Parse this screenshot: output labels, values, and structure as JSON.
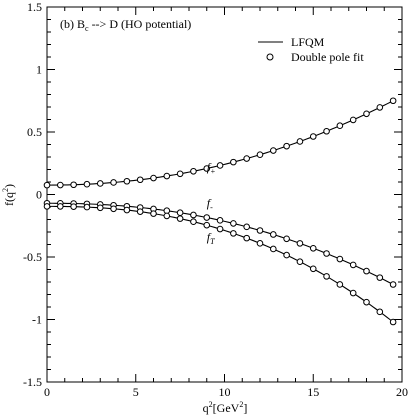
{
  "chart_data": {
    "type": "line",
    "title": "(b) B",
    "title_sub": "c",
    "title_rest": " --> D (HO potential)",
    "xlabel": {
      "base": "q",
      "sup": "2",
      "rest": "[GeV",
      "sup2": "2",
      "end": "]"
    },
    "ylabel": {
      "base": "f(q",
      "sup": "2",
      "end": ")"
    },
    "xlim": [
      0,
      20
    ],
    "ylim": [
      -1.5,
      1.5
    ],
    "xticks": [
      0,
      5,
      10,
      15,
      20
    ],
    "yticks": [
      -1.5,
      -1,
      -0.5,
      0,
      0.5,
      1,
      1.5
    ],
    "xtick_labels": [
      "0",
      "5",
      "10",
      "15",
      "20"
    ],
    "ytick_labels": [
      "-1.5",
      "-1",
      "-0.5",
      "0",
      "0.5",
      "1",
      "1.5"
    ],
    "legend": {
      "placement": "top-right",
      "line_label": "LFQM",
      "marker_label": "Double pole fit"
    },
    "curves": [
      {
        "label_base": "f",
        "label_sub": "+",
        "label_x": 9.0,
        "label_y": 0.19,
        "f0": 0.075,
        "fmax": 0.75,
        "a": 2.1,
        "b": 1.24
      },
      {
        "label_base": "f",
        "label_sub": "-",
        "label_x": 9.0,
        "label_y": -0.1,
        "f0": -0.07,
        "fmax": -0.72,
        "a": 2.25,
        "b": 1.39
      },
      {
        "label_base": "f",
        "label_sub": "T",
        "label_x": 9.0,
        "label_y": -0.37,
        "f0": -0.095,
        "fmax": -1.02,
        "a": 2.35,
        "b": 1.44
      }
    ],
    "qmax": 19.5
  }
}
